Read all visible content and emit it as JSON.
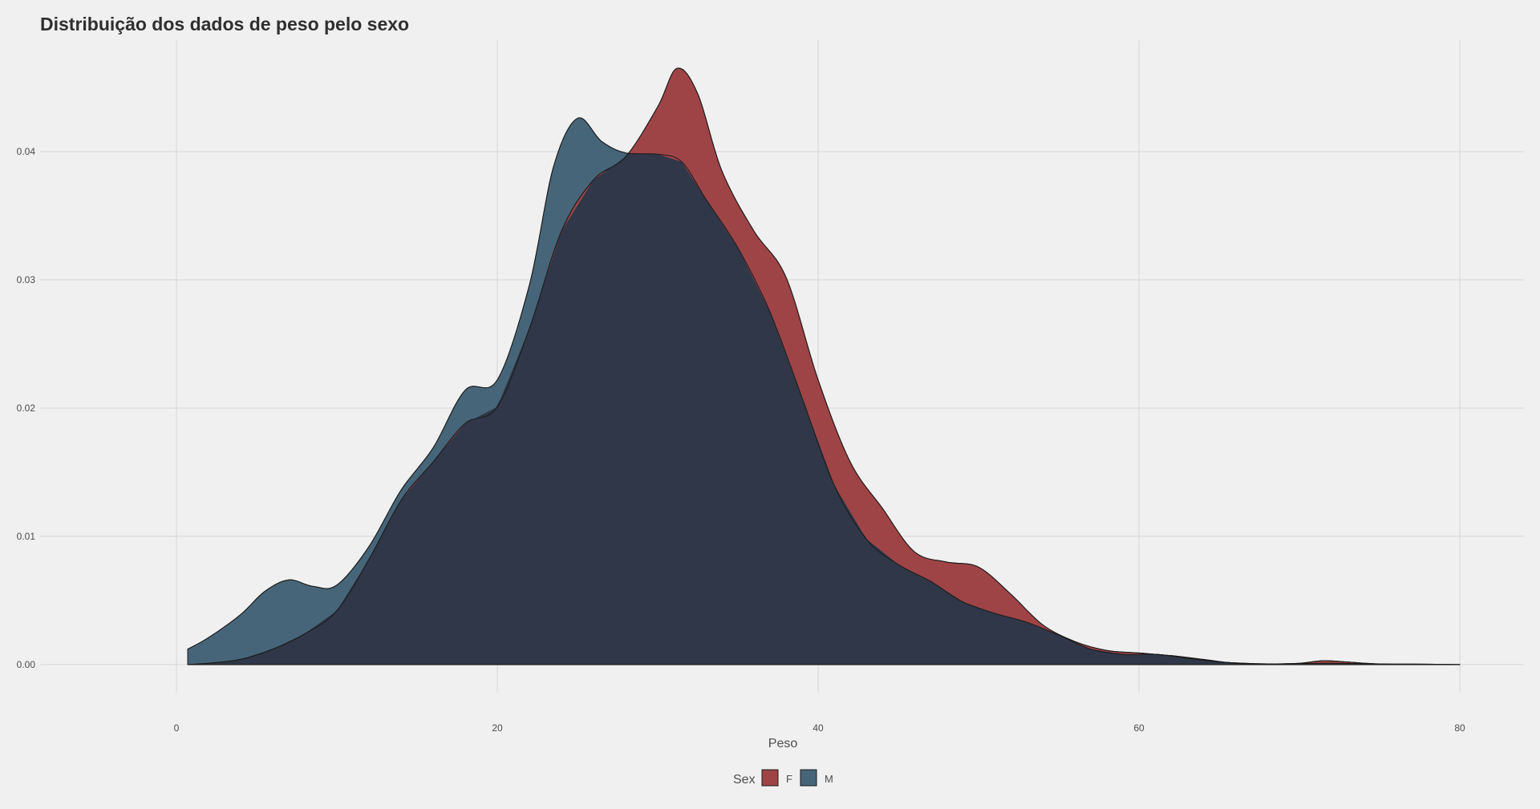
{
  "chart_data": {
    "type": "area",
    "title": "Distribuição dos dados de peso pelo sexo",
    "xlabel": "Peso",
    "ylabel": "",
    "xlim": [
      -8.5,
      84
    ],
    "ylim": [
      -0.0022,
      0.0487
    ],
    "x_ticks": [
      0,
      20,
      40,
      60,
      80
    ],
    "y_ticks": [
      0.0,
      0.01,
      0.02,
      0.03,
      0.04
    ],
    "y_tick_labels": [
      "0.00",
      "0.01",
      "0.02",
      "0.03",
      "0.04"
    ],
    "grid": true,
    "legend": {
      "position": "bottom",
      "title": "Sex",
      "entries": [
        {
          "label": "F",
          "color": "#9e4446"
        },
        {
          "label": "M",
          "color": "#476579"
        }
      ]
    },
    "overlap_color": "#2f3748",
    "series": [
      {
        "name": "F",
        "color": "#9e4446",
        "points": [
          [
            0.7,
            0.0
          ],
          [
            2,
            0.0001
          ],
          [
            4,
            0.0004
          ],
          [
            6,
            0.0012
          ],
          [
            8,
            0.0024
          ],
          [
            10,
            0.0042
          ],
          [
            12,
            0.0082
          ],
          [
            14,
            0.0128
          ],
          [
            16,
            0.0158
          ],
          [
            18,
            0.0188
          ],
          [
            20,
            0.0201
          ],
          [
            22,
            0.0262
          ],
          [
            24,
            0.0338
          ],
          [
            26,
            0.0378
          ],
          [
            28,
            0.0396
          ],
          [
            30,
            0.0435
          ],
          [
            31.2,
            0.0465
          ],
          [
            32.5,
            0.0445
          ],
          [
            34,
            0.0385
          ],
          [
            36,
            0.0338
          ],
          [
            38,
            0.0302
          ],
          [
            40,
            0.0222
          ],
          [
            42,
            0.0158
          ],
          [
            44,
            0.0122
          ],
          [
            46,
            0.0088
          ],
          [
            48,
            0.008
          ],
          [
            50,
            0.0076
          ],
          [
            52,
            0.0055
          ],
          [
            54,
            0.0031
          ],
          [
            56,
            0.0018
          ],
          [
            58,
            0.0011
          ],
          [
            60,
            0.0009
          ],
          [
            62,
            0.0007
          ],
          [
            64,
            0.0004
          ],
          [
            66,
            0.0001
          ],
          [
            68,
            5e-05
          ],
          [
            70,
            0.0001
          ],
          [
            71.5,
            0.0003
          ],
          [
            73,
            0.0002
          ],
          [
            75,
            5e-05
          ],
          [
            78,
            3e-05
          ],
          [
            80,
            0.0
          ]
        ]
      },
      {
        "name": "M",
        "color": "#476579",
        "points": [
          [
            0.7,
            0.0012
          ],
          [
            2,
            0.0021
          ],
          [
            4,
            0.0039
          ],
          [
            5.5,
            0.0057
          ],
          [
            7,
            0.0066
          ],
          [
            8.5,
            0.0061
          ],
          [
            10,
            0.0062
          ],
          [
            12,
            0.0092
          ],
          [
            14,
            0.0136
          ],
          [
            16,
            0.0169
          ],
          [
            18,
            0.0214
          ],
          [
            20,
            0.0222
          ],
          [
            22,
            0.0296
          ],
          [
            23.5,
            0.0388
          ],
          [
            25,
            0.0426
          ],
          [
            26.5,
            0.0408
          ],
          [
            28,
            0.0399
          ],
          [
            30,
            0.0398
          ],
          [
            31.5,
            0.0392
          ],
          [
            33,
            0.0363
          ],
          [
            35,
            0.0325
          ],
          [
            37,
            0.0275
          ],
          [
            39,
            0.0208
          ],
          [
            41,
            0.014
          ],
          [
            43,
            0.0098
          ],
          [
            45,
            0.0078
          ],
          [
            47,
            0.0065
          ],
          [
            49,
            0.0049
          ],
          [
            51,
            0.004
          ],
          [
            53,
            0.0033
          ],
          [
            55,
            0.0023
          ],
          [
            57,
            0.0012
          ],
          [
            59,
            0.0008
          ],
          [
            61,
            0.0008
          ],
          [
            63,
            0.0005
          ],
          [
            65,
            0.0002
          ],
          [
            68,
            5e-05
          ],
          [
            72,
            0.0001
          ],
          [
            76,
            2e-05
          ],
          [
            80,
            0.0
          ]
        ]
      }
    ]
  }
}
